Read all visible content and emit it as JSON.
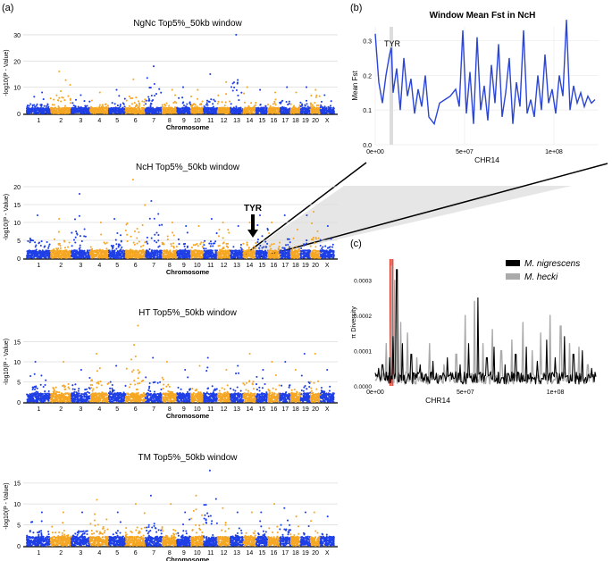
{
  "panel_labels": [
    "(a)",
    "(b)",
    "(c)"
  ],
  "colors": {
    "odd": "#1f3fe6",
    "even": "#f5a623",
    "line_b": "#2a45d8",
    "nig": "#000000",
    "hecki": "#aaaaaa",
    "red": "#d93a2b",
    "grid": "#dddddd"
  },
  "chart_data": [
    {
      "type": "scatter",
      "title": "NgNc Top5%_50kb window",
      "xlabel": "Chromosome",
      "ylabel": "-log10(P - Value)",
      "ylim": [
        0,
        31
      ],
      "yticks": [
        0,
        10,
        20,
        30
      ],
      "categories": [
        "1",
        "2",
        "3",
        "4",
        "5",
        "6",
        "7",
        "8",
        "9",
        "10",
        "11",
        "12",
        "13",
        "14",
        "15",
        "16",
        "17",
        "18",
        "19",
        "20",
        "X"
      ],
      "peaks": [
        [
          1,
          8
        ],
        [
          2,
          16
        ],
        [
          3,
          7
        ],
        [
          4,
          8
        ],
        [
          5,
          9
        ],
        [
          6,
          13
        ],
        [
          7,
          18
        ],
        [
          8,
          9
        ],
        [
          9,
          10
        ],
        [
          10,
          9
        ],
        [
          11,
          15
        ],
        [
          12,
          12
        ],
        [
          13,
          30
        ],
        [
          14,
          10
        ],
        [
          15,
          9
        ],
        [
          16,
          8
        ],
        [
          17,
          10
        ],
        [
          18,
          8
        ],
        [
          19,
          10
        ],
        [
          20,
          9
        ],
        [
          21,
          7
        ]
      ],
      "grid": true
    },
    {
      "type": "scatter",
      "title": "NcH Top5%_50kb window",
      "xlabel": "Chromosome",
      "ylabel": "-log10(P - Value)",
      "ylim": [
        0,
        23
      ],
      "yticks": [
        0,
        5,
        10,
        15,
        20
      ],
      "categories": [
        "1",
        "2",
        "3",
        "4",
        "5",
        "6",
        "7",
        "8",
        "9",
        "10",
        "11",
        "12",
        "13",
        "14",
        "15",
        "16",
        "17",
        "18",
        "19",
        "20",
        "X"
      ],
      "peaks": [
        [
          1,
          12
        ],
        [
          2,
          11
        ],
        [
          3,
          18
        ],
        [
          4,
          10
        ],
        [
          5,
          11
        ],
        [
          6,
          22
        ],
        [
          7,
          16
        ],
        [
          8,
          10
        ],
        [
          9,
          9
        ],
        [
          10,
          9
        ],
        [
          11,
          11
        ],
        [
          12,
          10
        ],
        [
          13,
          9
        ],
        [
          14,
          10
        ],
        [
          15,
          12
        ],
        [
          16,
          10
        ],
        [
          17,
          12
        ],
        [
          18,
          8
        ],
        [
          19,
          12
        ],
        [
          20,
          13
        ],
        [
          21,
          9
        ]
      ],
      "annotation": "TYR",
      "grid": true
    },
    {
      "type": "scatter",
      "title": "HT Top5%_50kb window",
      "xlabel": "Chromosome",
      "ylabel": "-log10(P - Value)",
      "ylim": [
        0,
        20
      ],
      "yticks": [
        0,
        5,
        10,
        15
      ],
      "categories": [
        "1",
        "2",
        "3",
        "4",
        "5",
        "6",
        "7",
        "8",
        "9",
        "10",
        "11",
        "12",
        "13",
        "14",
        "15",
        "16",
        "17",
        "18",
        "19",
        "20",
        "X"
      ],
      "peaks": [
        [
          1,
          10
        ],
        [
          2,
          10
        ],
        [
          3,
          8
        ],
        [
          4,
          12
        ],
        [
          5,
          9
        ],
        [
          6,
          19
        ],
        [
          7,
          11
        ],
        [
          8,
          10
        ],
        [
          9,
          8
        ],
        [
          10,
          9
        ],
        [
          11,
          11
        ],
        [
          12,
          8
        ],
        [
          13,
          9
        ],
        [
          14,
          12
        ],
        [
          15,
          8
        ],
        [
          16,
          10
        ],
        [
          17,
          10
        ],
        [
          18,
          8
        ],
        [
          19,
          12
        ],
        [
          20,
          12
        ],
        [
          21,
          8
        ]
      ],
      "grid": true
    },
    {
      "type": "scatter",
      "title": "TM Top5%_50kb window",
      "xlabel": "Chromosome",
      "ylabel": "-log10(P - Value)",
      "ylim": [
        0,
        19
      ],
      "yticks": [
        0,
        5,
        10,
        15
      ],
      "categories": [
        "1",
        "2",
        "3",
        "4",
        "5",
        "6",
        "7",
        "8",
        "9",
        "10",
        "11",
        "12",
        "13",
        "14",
        "15",
        "16",
        "17",
        "18",
        "19",
        "20",
        "X"
      ],
      "peaks": [
        [
          1,
          8
        ],
        [
          2,
          8
        ],
        [
          3,
          8
        ],
        [
          4,
          11
        ],
        [
          5,
          8
        ],
        [
          6,
          10
        ],
        [
          7,
          12
        ],
        [
          8,
          10
        ],
        [
          9,
          8
        ],
        [
          10,
          12
        ],
        [
          11,
          18
        ],
        [
          12,
          9
        ],
        [
          13,
          8
        ],
        [
          14,
          8
        ],
        [
          15,
          8
        ],
        [
          16,
          10
        ],
        [
          17,
          9
        ],
        [
          18,
          7
        ],
        [
          19,
          8
        ],
        [
          20,
          8
        ],
        [
          21,
          7
        ]
      ],
      "grid": true
    },
    {
      "type": "line",
      "title": "Window Mean Fst in NcH",
      "xlabel": "CHR14",
      "ylabel": "Mean Fst",
      "xlim": [
        0,
        125000000
      ],
      "ylim": [
        0,
        0.34
      ],
      "xticks": [
        0,
        50000000,
        100000000
      ],
      "xtick_labels": [
        "0e+00",
        "5e+07",
        "1e+08"
      ],
      "yticks": [
        0.0,
        0.1,
        0.2,
        0.3
      ],
      "ytick_labels": [
        "0.0",
        "0.1",
        "0.2",
        "0.3"
      ],
      "annotation": "TYR",
      "highlight_x": [
        8000000,
        10000000
      ],
      "series": [
        {
          "x": [
            0,
            2000000.0,
            4000000.0,
            6000000.0,
            8000000.0,
            9000000.0,
            10000000.0,
            12000000.0,
            14000000.0,
            16000000.0,
            18000000.0,
            20000000.0,
            22000000.0,
            24000000.0,
            26000000.0,
            28000000.0,
            30000000.0,
            33000000.0,
            36000000.0,
            39000000.0,
            42000000.0,
            45000000.0,
            47000000.0,
            49000000.0,
            51000000.0,
            53000000.0,
            55000000.0,
            57000000.0,
            59000000.0,
            61000000.0,
            63000000.0,
            65000000.0,
            67000000.0,
            69000000.0,
            71000000.0,
            73000000.0,
            75000000.0,
            77000000.0,
            79000000.0,
            81000000.0,
            83000000.0,
            85000000.0,
            87000000.0,
            89000000.0,
            91000000.0,
            93000000.0,
            95000000.0,
            97000000.0,
            99000000.0,
            101000000.0,
            103000000.0,
            105000000.0,
            107000000.0,
            109000000.0,
            111000000.0,
            113000000.0,
            115000000.0,
            117000000.0,
            119000000.0,
            121000000.0,
            123000000.0
          ],
          "y": [
            0.32,
            0.18,
            0.12,
            0.2,
            0.26,
            0.28,
            0.15,
            0.22,
            0.1,
            0.25,
            0.14,
            0.19,
            0.09,
            0.16,
            0.11,
            0.2,
            0.08,
            0.06,
            0.12,
            0.13,
            0.14,
            0.16,
            0.11,
            0.33,
            0.09,
            0.21,
            0.06,
            0.31,
            0.1,
            0.17,
            0.07,
            0.23,
            0.12,
            0.29,
            0.08,
            0.15,
            0.25,
            0.06,
            0.18,
            0.11,
            0.33,
            0.09,
            0.13,
            0.08,
            0.2,
            0.1,
            0.26,
            0.12,
            0.16,
            0.09,
            0.2,
            0.14,
            0.36,
            0.1,
            0.17,
            0.12,
            0.15,
            0.11,
            0.14,
            0.12,
            0.13
          ]
        }
      ],
      "grid": true
    },
    {
      "type": "line",
      "xlabel": "CHR14",
      "ylabel": "π Diversity",
      "xlim": [
        0,
        125000000
      ],
      "ylim": [
        0,
        0.00036
      ],
      "xticks": [
        0,
        50000000,
        100000000
      ],
      "xtick_labels": [
        "0e+00",
        "5e+07",
        "1e+08"
      ],
      "yticks": [
        0.0,
        0.0001,
        0.0002,
        0.0003
      ],
      "ytick_labels": [
        "0.0000",
        "0.0001",
        "0.0002",
        "0.0003"
      ],
      "highlight_x": [
        8000000,
        10000000
      ],
      "legend": [
        "M. nigrescens",
        "M. hecki"
      ],
      "legend_position": "top-right",
      "series": [
        {
          "name": "M. hecki",
          "spikes": [
            [
              2000000.0,
              4e-05
            ],
            [
              6000000.0,
              0.00012
            ],
            [
              9000000.0,
              0.00034
            ],
            [
              11000000.0,
              0.0003
            ],
            [
              14000000.0,
              0.00018
            ],
            [
              18000000.0,
              0.00015
            ],
            [
              23000000.0,
              8e-05
            ],
            [
              30000000.0,
              0.00012
            ],
            [
              38000000.0,
              6e-05
            ],
            [
              45000000.0,
              9e-05
            ],
            [
              50000000.0,
              0.0002
            ],
            [
              55000000.0,
              0.00024
            ],
            [
              60000000.0,
              0.00012
            ],
            [
              65000000.0,
              0.00016
            ],
            [
              70000000.0,
              0.0001
            ],
            [
              76000000.0,
              0.00013
            ],
            [
              82000000.0,
              0.00018
            ],
            [
              87000000.0,
              0.0001
            ],
            [
              92000000.0,
              0.00015
            ],
            [
              97000000.0,
              0.0002
            ],
            [
              103000000.0,
              0.00017
            ],
            [
              108000000.0,
              0.00012
            ],
            [
              113000000.0,
              0.00011
            ],
            [
              118000000.0,
              6e-05
            ],
            [
              123000000.0,
              5e-05
            ]
          ]
        },
        {
          "name": "M. nigrescens",
          "spikes": [
            [
              2000000.0,
              5e-05
            ],
            [
              4000000.0,
              6e-05
            ],
            [
              8000000.0,
              8e-05
            ],
            [
              10000000.0,
              0.00014
            ],
            [
              12000000.0,
              0.00033
            ],
            [
              15000000.0,
              0.00012
            ],
            [
              20000000.0,
              9e-05
            ],
            [
              25000000.0,
              6e-05
            ],
            [
              32000000.0,
              7e-05
            ],
            [
              40000000.0,
              8e-05
            ],
            [
              47000000.0,
              6e-05
            ],
            [
              52000000.0,
              0.00012
            ],
            [
              57000000.0,
              0.00025
            ],
            [
              62000000.0,
              8e-05
            ],
            [
              66000000.0,
              0.00011
            ],
            [
              72000000.0,
              6e-05
            ],
            [
              78000000.0,
              9e-05
            ],
            [
              84000000.0,
              0.00011
            ],
            [
              90000000.0,
              7e-05
            ],
            [
              95000000.0,
              0.00013
            ],
            [
              100000000.0,
              8e-05
            ],
            [
              105000000.0,
              0.00014
            ],
            [
              110000000.0,
              9e-05
            ],
            [
              115000000.0,
              0.0001
            ],
            [
              120000000.0,
              5e-05
            ]
          ]
        }
      ],
      "grid": true
    }
  ],
  "zoom_label_annotation": "TYR"
}
